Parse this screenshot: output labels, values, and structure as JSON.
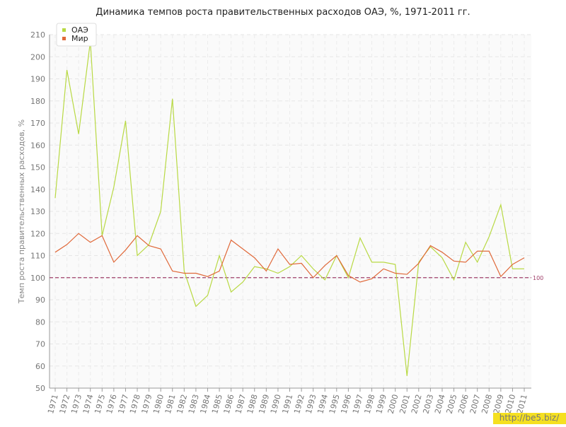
{
  "chart_data": {
    "type": "line",
    "title": "Динамика темпов роста правительственных расходов ОАЭ, %, 1971-2011 гг.",
    "y_label": "Темп роста правительственных расходов, %",
    "categories": [
      "1971",
      "1972",
      "1973",
      "1974",
      "1975",
      "1976",
      "1977",
      "1978",
      "1979",
      "1980",
      "1981",
      "1982",
      "1983",
      "1984",
      "1985",
      "1986",
      "1987",
      "1988",
      "1989",
      "1990",
      "1991",
      "1992",
      "1993",
      "1994",
      "1995",
      "1996",
      "1997",
      "1998",
      "1999",
      "2000",
      "2001",
      "2002",
      "2003",
      "2004",
      "2005",
      "2006",
      "2007",
      "2008",
      "2009",
      "2010",
      "2011"
    ],
    "series": [
      {
        "name": "ОАЭ",
        "color": "#b8d943",
        "values": [
          136,
          194,
          165,
          207,
          119,
          141,
          171,
          110,
          115,
          130,
          181,
          103,
          87,
          92,
          110,
          93.5,
          98,
          105,
          104,
          102,
          105,
          110,
          104,
          99,
          110,
          100,
          118,
          107,
          107,
          106,
          55.5,
          107,
          114,
          109,
          99,
          116,
          107,
          118.5,
          133,
          104,
          104
        ]
      },
      {
        "name": "Мир",
        "color": "#e0693a",
        "values": [
          111.5,
          115,
          120,
          116,
          119,
          107,
          112.5,
          119,
          114.5,
          113,
          103,
          102,
          102,
          100.5,
          103,
          117,
          113,
          109,
          103,
          113,
          106,
          106.5,
          100,
          105.5,
          110,
          101,
          98,
          99.5,
          104,
          102,
          101.5,
          106.5,
          114.5,
          111.5,
          107.5,
          107,
          112,
          112,
          100.5,
          106,
          109
        ]
      }
    ],
    "reference_line": 100,
    "reference_color": "#a0406a",
    "ylim": [
      50,
      210
    ],
    "yticks": [
      50,
      60,
      70,
      80,
      90,
      100,
      110,
      120,
      130,
      140,
      150,
      160,
      170,
      180,
      190,
      200,
      210
    ],
    "grid": true,
    "watermark": "http://be5.biz/"
  }
}
